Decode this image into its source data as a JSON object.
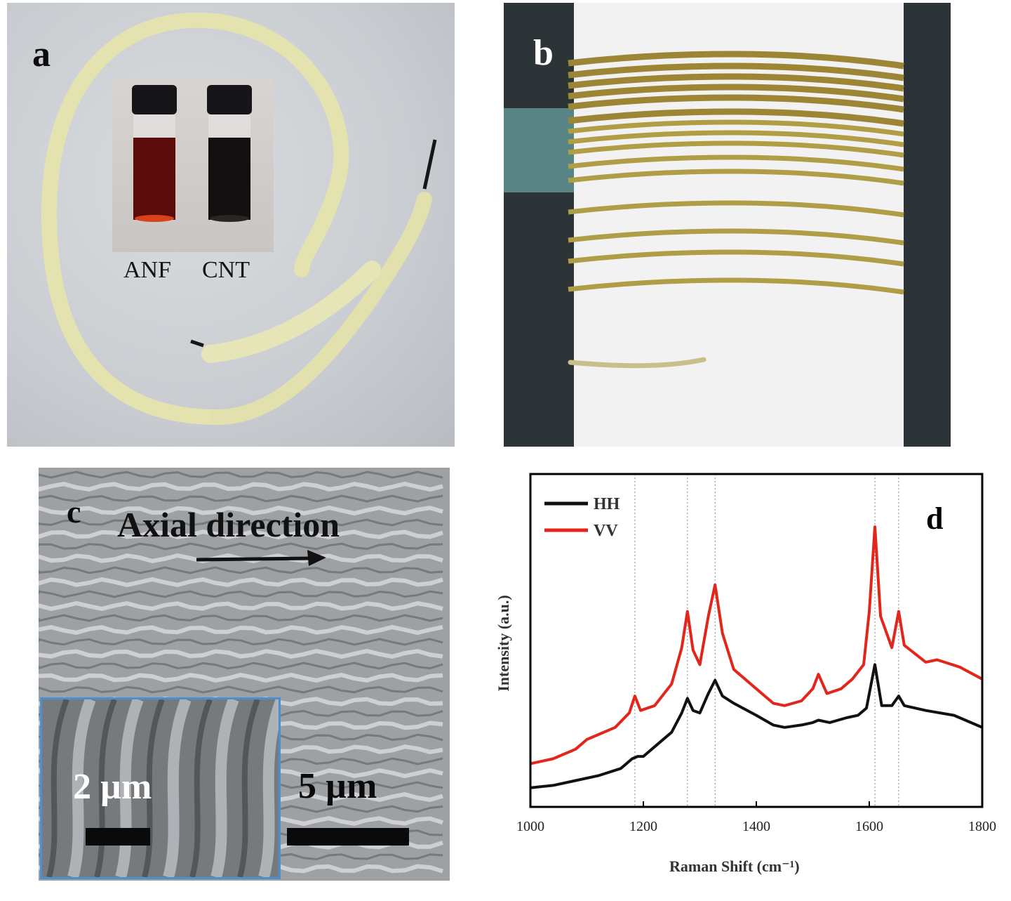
{
  "panel_a": {
    "label": "a",
    "vials": [
      {
        "label": "ANF",
        "liquid_color": "#5a0d0a",
        "meniscus_color": "#d8411c"
      },
      {
        "label": "CNT",
        "liquid_color": "#121010",
        "meniscus_color": "#2a2524"
      }
    ],
    "fiber_color": "#e4e3b0",
    "cap_color": "#161618"
  },
  "panel_b": {
    "label": "b",
    "fiber_color": "#b09e47",
    "cylinder_color": "#f2f2f2"
  },
  "panel_c": {
    "label": "c",
    "annotation": "Axial direction",
    "inset_scale_label": "2 µm",
    "scale_label": "5 µm",
    "inset_border_color": "#4a8fd0"
  },
  "panel_d": {
    "label": "d",
    "chart_data": {
      "type": "line",
      "xlabel": "Raman Shift (cm⁻¹)",
      "ylabel": "Intensity (a.u.)",
      "xlim": [
        1000,
        1800
      ],
      "ylim": [
        0,
        10
      ],
      "xticks": [
        "1000",
        "1200",
        "1400",
        "1600",
        "1800"
      ],
      "yticks_shown": false,
      "legend": "top-left",
      "reference_lines_x": [
        1185,
        1278,
        1327,
        1610,
        1652
      ],
      "series": [
        {
          "name": "HH",
          "color": "#111111",
          "points": [
            [
              1000,
              0.5
            ],
            [
              1040,
              0.6
            ],
            [
              1080,
              0.8
            ],
            [
              1120,
              1.0
            ],
            [
              1160,
              1.3
            ],
            [
              1180,
              1.7
            ],
            [
              1190,
              1.8
            ],
            [
              1200,
              1.8
            ],
            [
              1220,
              2.2
            ],
            [
              1250,
              2.8
            ],
            [
              1268,
              3.6
            ],
            [
              1278,
              4.2
            ],
            [
              1288,
              3.7
            ],
            [
              1300,
              3.6
            ],
            [
              1315,
              4.4
            ],
            [
              1327,
              4.95
            ],
            [
              1340,
              4.3
            ],
            [
              1360,
              4.0
            ],
            [
              1400,
              3.5
            ],
            [
              1430,
              3.1
            ],
            [
              1450,
              3.0
            ],
            [
              1480,
              3.1
            ],
            [
              1500,
              3.2
            ],
            [
              1510,
              3.3
            ],
            [
              1530,
              3.2
            ],
            [
              1560,
              3.4
            ],
            [
              1580,
              3.5
            ],
            [
              1595,
              3.8
            ],
            [
              1610,
              5.6
            ],
            [
              1622,
              3.9
            ],
            [
              1640,
              3.9
            ],
            [
              1652,
              4.3
            ],
            [
              1662,
              3.9
            ],
            [
              1700,
              3.7
            ],
            [
              1750,
              3.5
            ],
            [
              1800,
              3.0
            ]
          ]
        },
        {
          "name": "VV",
          "color": "#e3261c",
          "points": [
            [
              1000,
              1.5
            ],
            [
              1040,
              1.7
            ],
            [
              1080,
              2.1
            ],
            [
              1100,
              2.5
            ],
            [
              1120,
              2.7
            ],
            [
              1150,
              3.0
            ],
            [
              1175,
              3.6
            ],
            [
              1185,
              4.3
            ],
            [
              1195,
              3.7
            ],
            [
              1220,
              3.9
            ],
            [
              1250,
              4.8
            ],
            [
              1268,
              6.3
            ],
            [
              1278,
              7.8
            ],
            [
              1288,
              6.2
            ],
            [
              1300,
              5.6
            ],
            [
              1315,
              7.6
            ],
            [
              1327,
              8.9
            ],
            [
              1340,
              6.9
            ],
            [
              1360,
              5.4
            ],
            [
              1400,
              4.6
            ],
            [
              1430,
              4.0
            ],
            [
              1450,
              3.9
            ],
            [
              1480,
              4.1
            ],
            [
              1500,
              4.6
            ],
            [
              1510,
              5.2
            ],
            [
              1525,
              4.4
            ],
            [
              1550,
              4.6
            ],
            [
              1570,
              5.0
            ],
            [
              1590,
              5.6
            ],
            [
              1600,
              7.8
            ],
            [
              1610,
              11.3
            ],
            [
              1620,
              7.6
            ],
            [
              1640,
              6.3
            ],
            [
              1652,
              7.8
            ],
            [
              1662,
              6.4
            ],
            [
              1700,
              5.7
            ],
            [
              1720,
              5.8
            ],
            [
              1760,
              5.5
            ],
            [
              1800,
              5.0
            ]
          ]
        }
      ]
    }
  }
}
